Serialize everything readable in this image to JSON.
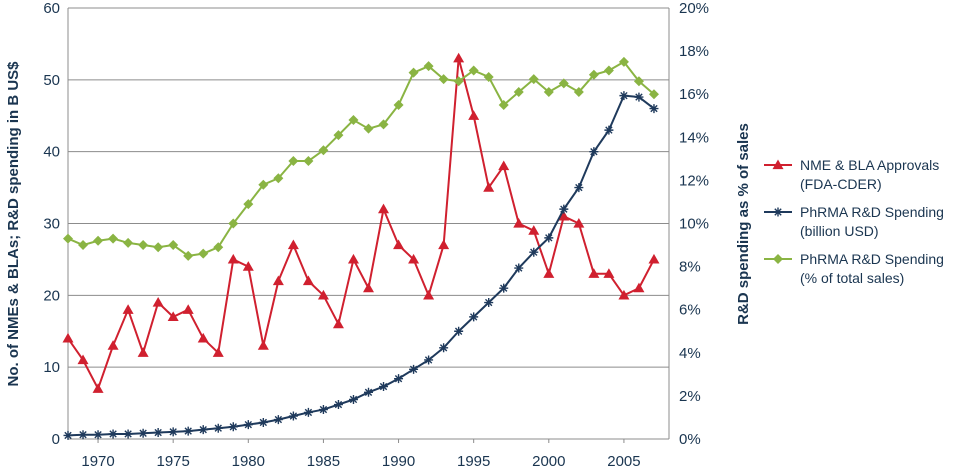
{
  "chart_data": {
    "type": "line",
    "title": "",
    "xlabel": "",
    "ylabel": "No. of NMEs & BLAs; R&D spending in B US$",
    "y2label": "R&D spending as % of sales",
    "xlim": [
      1968,
      2008
    ],
    "ylim": [
      0,
      60
    ],
    "y2lim": [
      0,
      20
    ],
    "x_ticks": [
      1970,
      1975,
      1980,
      1985,
      1990,
      1995,
      2000,
      2005
    ],
    "y_ticks": [
      0,
      10,
      20,
      30,
      40,
      50,
      60
    ],
    "y2_ticks": [
      "0%",
      "2%",
      "4%",
      "6%",
      "8%",
      "10%",
      "12%",
      "14%",
      "16%",
      "18%",
      "20%"
    ],
    "grid": "horizontal",
    "legend_position": "right",
    "series": [
      {
        "name": "NME & BLA Approvals (FDA-CDER)",
        "name_lines": [
          "NME & BLA Approvals",
          "(FDA-CDER)"
        ],
        "axis": "left",
        "color": "#d0202f",
        "marker": "triangle",
        "x": [
          1968,
          1969,
          1970,
          1971,
          1972,
          1973,
          1974,
          1975,
          1976,
          1977,
          1978,
          1979,
          1980,
          1981,
          1982,
          1983,
          1984,
          1985,
          1986,
          1987,
          1988,
          1989,
          1990,
          1991,
          1992,
          1993,
          1994,
          1995,
          1996,
          1997,
          1998,
          1999,
          2000,
          2001,
          2002,
          2003,
          2004,
          2005,
          2006,
          2007
        ],
        "y": [
          14,
          11,
          7,
          13,
          18,
          12,
          19,
          17,
          18,
          14,
          12,
          25,
          24,
          13,
          22,
          27,
          22,
          20,
          16,
          25,
          21,
          32,
          27,
          25,
          20,
          27,
          53,
          45,
          35,
          38,
          30,
          29,
          23,
          31,
          30,
          23,
          23,
          20,
          21,
          25
        ]
      },
      {
        "name": "PhRMA R&D Spending (billion USD)",
        "name_lines": [
          "PhRMA R&D Spending",
          "(billion USD)"
        ],
        "axis": "left",
        "color": "#1f3a5c",
        "marker": "asterisk",
        "x": [
          1968,
          1969,
          1970,
          1971,
          1972,
          1973,
          1974,
          1975,
          1976,
          1977,
          1978,
          1979,
          1980,
          1981,
          1982,
          1983,
          1984,
          1985,
          1986,
          1987,
          1988,
          1989,
          1990,
          1991,
          1992,
          1993,
          1994,
          1995,
          1996,
          1997,
          1998,
          1999,
          2000,
          2001,
          2002,
          2003,
          2004,
          2005,
          2006,
          2007
        ],
        "y": [
          0.5,
          0.6,
          0.6,
          0.7,
          0.7,
          0.8,
          0.9,
          1.0,
          1.1,
          1.3,
          1.5,
          1.7,
          2.0,
          2.3,
          2.7,
          3.2,
          3.7,
          4.1,
          4.8,
          5.5,
          6.5,
          7.3,
          8.4,
          9.7,
          11.0,
          12.7,
          15.0,
          17.0,
          19.0,
          21.0,
          23.8,
          26.0,
          28.0,
          32.0,
          35.0,
          40.0,
          43.0,
          47.8,
          47.6,
          46.0
        ]
      },
      {
        "name": "PhRMA R&D Spending (% of total sales)",
        "name_lines": [
          "PhRMA R&D Spending",
          "(% of total sales)"
        ],
        "axis": "right",
        "color": "#8ab443",
        "marker": "diamond",
        "x": [
          1968,
          1969,
          1970,
          1971,
          1972,
          1973,
          1974,
          1975,
          1976,
          1977,
          1978,
          1979,
          1980,
          1981,
          1982,
          1983,
          1984,
          1985,
          1986,
          1987,
          1988,
          1989,
          1990,
          1991,
          1992,
          1993,
          1994,
          1995,
          1996,
          1997,
          1998,
          1999,
          2000,
          2001,
          2002,
          2003,
          2004,
          2005,
          2006,
          2007
        ],
        "y": [
          9.3,
          9.0,
          9.2,
          9.3,
          9.1,
          9.0,
          8.9,
          9.0,
          8.5,
          8.6,
          8.9,
          10.0,
          10.9,
          11.8,
          12.1,
          12.9,
          12.9,
          13.4,
          14.1,
          14.8,
          14.4,
          14.6,
          15.5,
          17.0,
          17.3,
          16.7,
          16.6,
          17.1,
          16.8,
          15.5,
          16.1,
          16.7,
          16.1,
          16.5,
          16.1,
          16.9,
          17.1,
          17.5,
          16.6,
          16.0
        ]
      }
    ]
  }
}
